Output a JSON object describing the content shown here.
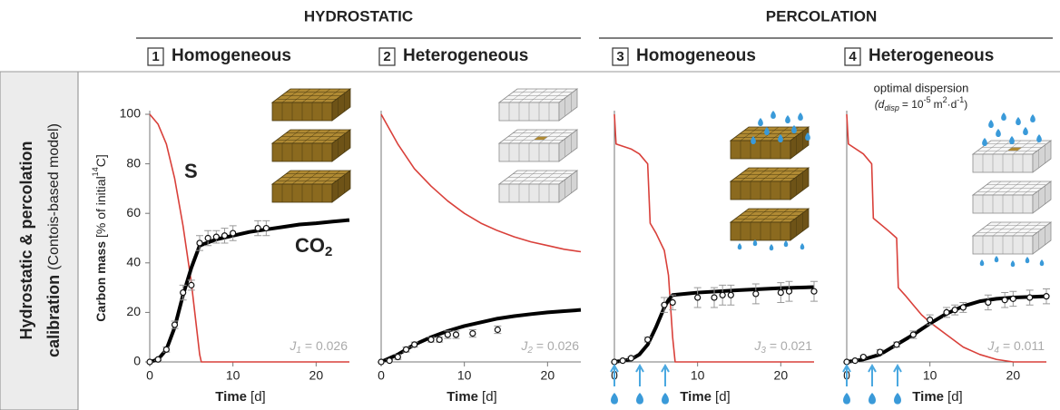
{
  "groups": [
    {
      "title": "HYDROSTATIC"
    },
    {
      "title": "PERCOLATION"
    }
  ],
  "side_label": {
    "line1": "Hydrostatic & percolation",
    "line2_bold": "calibration",
    "line2_rest": "(Contois-based model)"
  },
  "chart_data": [
    {
      "type": "line",
      "panel_label": "1",
      "subtitle": "Homogeneous",
      "subtitle_color": "#9b30d9",
      "xlim": [
        0,
        24
      ],
      "ylim": [
        0,
        100
      ],
      "xticks": [
        0,
        10,
        20
      ],
      "yticks": [
        0,
        20,
        40,
        60,
        80,
        100
      ],
      "xlabel": "Time",
      "xlabel_unit": "[d]",
      "ylabel": {
        "bold": "Carbon mass",
        "rest": "[% of initial",
        "sup": "14",
        "tail": "C]"
      },
      "score_symbol": "J",
      "score_index": "1",
      "score_text": "= 0.026",
      "series": [
        {
          "name": "S",
          "color": "#d9403a",
          "x": [
            0,
            1,
            2,
            3,
            4,
            5,
            6,
            6.2,
            24
          ],
          "values": [
            100,
            96,
            88,
            74,
            55,
            32,
            3,
            0,
            0
          ]
        },
        {
          "name": "CO",
          "name_sub": "2",
          "color": "#000000",
          "x": [
            0,
            1,
            2,
            3,
            4,
            5,
            6,
            8,
            10,
            12,
            14,
            16,
            18,
            20,
            22,
            24
          ],
          "values": [
            0,
            1,
            5,
            14,
            27,
            38,
            47,
            49.5,
            51,
            52.5,
            53.5,
            54.5,
            55.5,
            56,
            56.7,
            57.3
          ]
        }
      ],
      "observations": {
        "x": [
          0,
          1,
          2,
          3,
          4,
          5,
          6,
          7,
          8,
          9,
          10,
          13,
          14
        ],
        "values": [
          0,
          1,
          5,
          15,
          28,
          31,
          48,
          50,
          50.5,
          51,
          52,
          54,
          54
        ],
        "errors": [
          0,
          0.5,
          1,
          1.5,
          3,
          2,
          3,
          3,
          2.5,
          3,
          3,
          3,
          3
        ]
      }
    },
    {
      "type": "line",
      "panel_label": "2",
      "subtitle": "Heterogeneous",
      "subtitle_color": "#e6a817",
      "xlim": [
        0,
        24
      ],
      "ylim": [
        0,
        100
      ],
      "xticks": [
        0,
        10,
        20
      ],
      "xlabel": "Time",
      "xlabel_unit": "[d]",
      "score_symbol": "J",
      "score_index": "2",
      "score_text": "= 0.026",
      "series": [
        {
          "color": "#d9403a",
          "x": [
            0,
            2,
            4,
            6,
            8,
            10,
            12,
            14,
            16,
            18,
            20,
            22,
            24
          ],
          "values": [
            100,
            88,
            78,
            71,
            65,
            60,
            56,
            53,
            50.5,
            48.5,
            47,
            45.5,
            44.5
          ]
        },
        {
          "color": "#000000",
          "x": [
            0,
            2,
            4,
            6,
            8,
            10,
            12,
            14,
            16,
            18,
            20,
            22,
            24
          ],
          "values": [
            0,
            3,
            7,
            10,
            12.5,
            14.5,
            16,
            17.5,
            18.5,
            19.3,
            20,
            20.5,
            21
          ]
        }
      ],
      "observations": {
        "x": [
          0,
          1,
          2,
          3,
          4,
          6,
          7,
          8,
          9,
          11,
          14
        ],
        "values": [
          0,
          0.5,
          2,
          5,
          7,
          9,
          9,
          11,
          11,
          11.5,
          13
        ],
        "errors": [
          0,
          0.5,
          1,
          1,
          1,
          1,
          1,
          1.5,
          1.5,
          1.5,
          1.5
        ]
      }
    },
    {
      "type": "line",
      "panel_label": "3",
      "subtitle": "Homogeneous",
      "subtitle_color": "#9b30d9",
      "xlim": [
        0,
        24
      ],
      "ylim": [
        0,
        100
      ],
      "xticks": [
        0,
        10,
        20
      ],
      "xlabel": "Time",
      "xlabel_unit": "[d]",
      "score_symbol": "J",
      "score_index": "3",
      "score_text": "= 0.021",
      "series": [
        {
          "color": "#d9403a",
          "x": [
            0,
            0.2,
            2,
            3,
            4,
            4.3,
            5,
            6,
            6.5,
            7,
            7.3,
            24
          ],
          "values": [
            100,
            88,
            86,
            84,
            80,
            56,
            52,
            45,
            35,
            10,
            0,
            0
          ]
        },
        {
          "color": "#000000",
          "x": [
            0,
            2,
            3,
            4,
            5,
            6,
            6.5,
            7,
            10,
            15,
            20,
            24
          ],
          "values": [
            0,
            1,
            3,
            7,
            14,
            22,
            25,
            27,
            28,
            29,
            29.8,
            30.2
          ]
        }
      ],
      "observations": {
        "x": [
          0,
          1,
          2,
          4,
          6,
          7,
          10,
          12,
          13,
          14,
          17,
          20,
          21,
          24
        ],
        "values": [
          0,
          0.5,
          1.5,
          9,
          23,
          24,
          26,
          26,
          27,
          27,
          27.5,
          28,
          28.5,
          28.5
        ],
        "errors": [
          0,
          0.5,
          0.5,
          1,
          3,
          3,
          4,
          4,
          4,
          4,
          4,
          4,
          4,
          4
        ]
      }
    },
    {
      "type": "line",
      "panel_label": "4",
      "subtitle": "Heterogeneous",
      "subtitle_color": "#e6a817",
      "xlim": [
        0,
        24
      ],
      "ylim": [
        0,
        100
      ],
      "xticks": [
        0,
        10,
        20
      ],
      "xlabel": "Time",
      "xlabel_unit": "[d]",
      "score_symbol": "J",
      "score_index": "4",
      "score_text": "= 0.011",
      "annotation": {
        "line1": "optimal dispersion",
        "open": "(d",
        "sub": "disp",
        "eq": "= 10",
        "exp1": "-5",
        "unit": "m",
        "exp2": "2",
        "dot": "·d",
        "exp3": "-1",
        "close": ")"
      },
      "series": [
        {
          "color": "#d9403a",
          "x": [
            0,
            0.2,
            2,
            3,
            3.2,
            5,
            6,
            6.2,
            7,
            8,
            9,
            10,
            12,
            14,
            16,
            18,
            20,
            24
          ],
          "values": [
            100,
            88,
            84,
            80,
            58,
            53,
            50,
            30,
            27,
            23,
            19,
            16,
            11,
            6,
            3,
            1,
            0,
            0
          ]
        },
        {
          "color": "#000000",
          "x": [
            0,
            2,
            4,
            6,
            8,
            10,
            12,
            14,
            16,
            18,
            20,
            24
          ],
          "values": [
            0,
            1,
            3,
            7,
            11,
            15.5,
            19.5,
            22.5,
            24.5,
            25.5,
            26,
            26.5
          ]
        }
      ],
      "observations": {
        "x": [
          0,
          1,
          2,
          4,
          6,
          8,
          10,
          12,
          13,
          14,
          17,
          19,
          20,
          22,
          24
        ],
        "values": [
          0,
          0.5,
          2,
          4,
          7,
          11,
          17,
          20,
          21,
          22,
          24,
          25,
          25.5,
          26,
          26.5
        ],
        "errors": [
          0,
          0.5,
          0.5,
          1,
          1,
          1.5,
          2,
          2,
          2,
          2,
          3,
          3,
          3,
          3,
          3
        ]
      }
    }
  ]
}
